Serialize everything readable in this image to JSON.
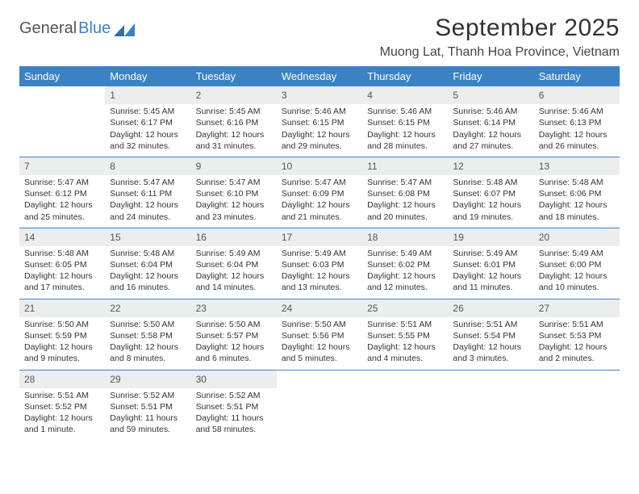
{
  "brand": {
    "part1": "General",
    "part2": "Blue"
  },
  "title": "September 2025",
  "location": "Muong Lat, Thanh Hoa Province, Vietnam",
  "colors": {
    "header_bg": "#3b82c4",
    "header_text": "#ffffff",
    "daynum_bg": "#eceded",
    "text": "#333333",
    "row_divider": "#3b82c4"
  },
  "weekdays": [
    "Sunday",
    "Monday",
    "Tuesday",
    "Wednesday",
    "Thursday",
    "Friday",
    "Saturday"
  ],
  "weeks": [
    [
      {
        "n": "",
        "sr": "",
        "ss": "",
        "dl": ""
      },
      {
        "n": "1",
        "sr": "Sunrise: 5:45 AM",
        "ss": "Sunset: 6:17 PM",
        "dl": "Daylight: 12 hours and 32 minutes."
      },
      {
        "n": "2",
        "sr": "Sunrise: 5:45 AM",
        "ss": "Sunset: 6:16 PM",
        "dl": "Daylight: 12 hours and 31 minutes."
      },
      {
        "n": "3",
        "sr": "Sunrise: 5:46 AM",
        "ss": "Sunset: 6:15 PM",
        "dl": "Daylight: 12 hours and 29 minutes."
      },
      {
        "n": "4",
        "sr": "Sunrise: 5:46 AM",
        "ss": "Sunset: 6:15 PM",
        "dl": "Daylight: 12 hours and 28 minutes."
      },
      {
        "n": "5",
        "sr": "Sunrise: 5:46 AM",
        "ss": "Sunset: 6:14 PM",
        "dl": "Daylight: 12 hours and 27 minutes."
      },
      {
        "n": "6",
        "sr": "Sunrise: 5:46 AM",
        "ss": "Sunset: 6:13 PM",
        "dl": "Daylight: 12 hours and 26 minutes."
      }
    ],
    [
      {
        "n": "7",
        "sr": "Sunrise: 5:47 AM",
        "ss": "Sunset: 6:12 PM",
        "dl": "Daylight: 12 hours and 25 minutes."
      },
      {
        "n": "8",
        "sr": "Sunrise: 5:47 AM",
        "ss": "Sunset: 6:11 PM",
        "dl": "Daylight: 12 hours and 24 minutes."
      },
      {
        "n": "9",
        "sr": "Sunrise: 5:47 AM",
        "ss": "Sunset: 6:10 PM",
        "dl": "Daylight: 12 hours and 23 minutes."
      },
      {
        "n": "10",
        "sr": "Sunrise: 5:47 AM",
        "ss": "Sunset: 6:09 PM",
        "dl": "Daylight: 12 hours and 21 minutes."
      },
      {
        "n": "11",
        "sr": "Sunrise: 5:47 AM",
        "ss": "Sunset: 6:08 PM",
        "dl": "Daylight: 12 hours and 20 minutes."
      },
      {
        "n": "12",
        "sr": "Sunrise: 5:48 AM",
        "ss": "Sunset: 6:07 PM",
        "dl": "Daylight: 12 hours and 19 minutes."
      },
      {
        "n": "13",
        "sr": "Sunrise: 5:48 AM",
        "ss": "Sunset: 6:06 PM",
        "dl": "Daylight: 12 hours and 18 minutes."
      }
    ],
    [
      {
        "n": "14",
        "sr": "Sunrise: 5:48 AM",
        "ss": "Sunset: 6:05 PM",
        "dl": "Daylight: 12 hours and 17 minutes."
      },
      {
        "n": "15",
        "sr": "Sunrise: 5:48 AM",
        "ss": "Sunset: 6:04 PM",
        "dl": "Daylight: 12 hours and 16 minutes."
      },
      {
        "n": "16",
        "sr": "Sunrise: 5:49 AM",
        "ss": "Sunset: 6:04 PM",
        "dl": "Daylight: 12 hours and 14 minutes."
      },
      {
        "n": "17",
        "sr": "Sunrise: 5:49 AM",
        "ss": "Sunset: 6:03 PM",
        "dl": "Daylight: 12 hours and 13 minutes."
      },
      {
        "n": "18",
        "sr": "Sunrise: 5:49 AM",
        "ss": "Sunset: 6:02 PM",
        "dl": "Daylight: 12 hours and 12 minutes."
      },
      {
        "n": "19",
        "sr": "Sunrise: 5:49 AM",
        "ss": "Sunset: 6:01 PM",
        "dl": "Daylight: 12 hours and 11 minutes."
      },
      {
        "n": "20",
        "sr": "Sunrise: 5:49 AM",
        "ss": "Sunset: 6:00 PM",
        "dl": "Daylight: 12 hours and 10 minutes."
      }
    ],
    [
      {
        "n": "21",
        "sr": "Sunrise: 5:50 AM",
        "ss": "Sunset: 5:59 PM",
        "dl": "Daylight: 12 hours and 9 minutes."
      },
      {
        "n": "22",
        "sr": "Sunrise: 5:50 AM",
        "ss": "Sunset: 5:58 PM",
        "dl": "Daylight: 12 hours and 8 minutes."
      },
      {
        "n": "23",
        "sr": "Sunrise: 5:50 AM",
        "ss": "Sunset: 5:57 PM",
        "dl": "Daylight: 12 hours and 6 minutes."
      },
      {
        "n": "24",
        "sr": "Sunrise: 5:50 AM",
        "ss": "Sunset: 5:56 PM",
        "dl": "Daylight: 12 hours and 5 minutes."
      },
      {
        "n": "25",
        "sr": "Sunrise: 5:51 AM",
        "ss": "Sunset: 5:55 PM",
        "dl": "Daylight: 12 hours and 4 minutes."
      },
      {
        "n": "26",
        "sr": "Sunrise: 5:51 AM",
        "ss": "Sunset: 5:54 PM",
        "dl": "Daylight: 12 hours and 3 minutes."
      },
      {
        "n": "27",
        "sr": "Sunrise: 5:51 AM",
        "ss": "Sunset: 5:53 PM",
        "dl": "Daylight: 12 hours and 2 minutes."
      }
    ],
    [
      {
        "n": "28",
        "sr": "Sunrise: 5:51 AM",
        "ss": "Sunset: 5:52 PM",
        "dl": "Daylight: 12 hours and 1 minute."
      },
      {
        "n": "29",
        "sr": "Sunrise: 5:52 AM",
        "ss": "Sunset: 5:51 PM",
        "dl": "Daylight: 11 hours and 59 minutes."
      },
      {
        "n": "30",
        "sr": "Sunrise: 5:52 AM",
        "ss": "Sunset: 5:51 PM",
        "dl": "Daylight: 11 hours and 58 minutes."
      },
      {
        "n": "",
        "sr": "",
        "ss": "",
        "dl": ""
      },
      {
        "n": "",
        "sr": "",
        "ss": "",
        "dl": ""
      },
      {
        "n": "",
        "sr": "",
        "ss": "",
        "dl": ""
      },
      {
        "n": "",
        "sr": "",
        "ss": "",
        "dl": ""
      }
    ]
  ]
}
